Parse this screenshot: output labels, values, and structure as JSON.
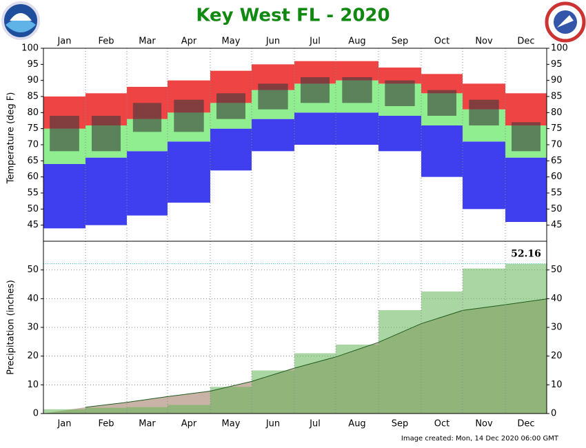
{
  "footer": "Image created: Mon, 14 Dec 2020 06:00 GMT",
  "chart_data": [
    {
      "type": "range_bar",
      "title": "Key West FL - 2020",
      "y_label": "Temperature (deg F)",
      "categories": [
        "Jan",
        "Feb",
        "Mar",
        "Apr",
        "May",
        "Jun",
        "Jul",
        "Aug",
        "Sep",
        "Oct",
        "Nov",
        "Dec"
      ],
      "record_high": [
        85,
        86,
        88,
        90,
        93,
        95,
        96,
        96,
        94,
        92,
        89,
        86
      ],
      "normal_high": [
        75,
        76,
        78,
        80,
        83,
        87,
        89,
        90,
        89,
        86,
        81,
        76
      ],
      "normal_low": [
        64,
        66,
        68,
        71,
        75,
        78,
        80,
        80,
        79,
        76,
        71,
        66
      ],
      "record_low": [
        44,
        45,
        48,
        52,
        62,
        68,
        70,
        70,
        68,
        60,
        50,
        46
      ],
      "actual_high": [
        79,
        79,
        83,
        84,
        86,
        89,
        91,
        91,
        90,
        87,
        84,
        77
      ],
      "actual_low": [
        68,
        68,
        74,
        74,
        78,
        81,
        83,
        83,
        82,
        79,
        76,
        68
      ],
      "colors": {
        "record_high": "#ee4444",
        "normal": "#90ee90",
        "record_low": "#3f3ff0",
        "actual": "#3a3a3a"
      },
      "ylim": [
        40,
        100
      ],
      "yticks": [
        45,
        50,
        55,
        60,
        65,
        70,
        75,
        80,
        85,
        90,
        95,
        100
      ],
      "grid": true
    },
    {
      "type": "cumulative_area",
      "y_label": "Precipitation (inches)",
      "categories": [
        "Jan",
        "Feb",
        "Mar",
        "Apr",
        "May",
        "Jun",
        "Jul",
        "Aug",
        "Sep",
        "Oct",
        "Nov",
        "Dec"
      ],
      "series": [
        {
          "color": "#c9b3a6",
          "line_color": "#1d5c1d",
          "values": [
            2.2,
            3.9,
            5.9,
            7.8,
            11.2,
            15.8,
            19.7,
            24.8,
            31.3,
            35.9,
            37.9,
            39.9
          ]
        },
        {
          "color": "#62b455",
          "values": [
            1.5,
            2.0,
            2.2,
            3.0,
            9.3,
            15.0,
            21.0,
            24.0,
            36.0,
            42.5,
            50.5,
            52.16
          ]
        }
      ],
      "ylim": [
        0,
        60
      ],
      "yticks": [
        0,
        10,
        20,
        30,
        40,
        50
      ],
      "grid": true
    }
  ]
}
